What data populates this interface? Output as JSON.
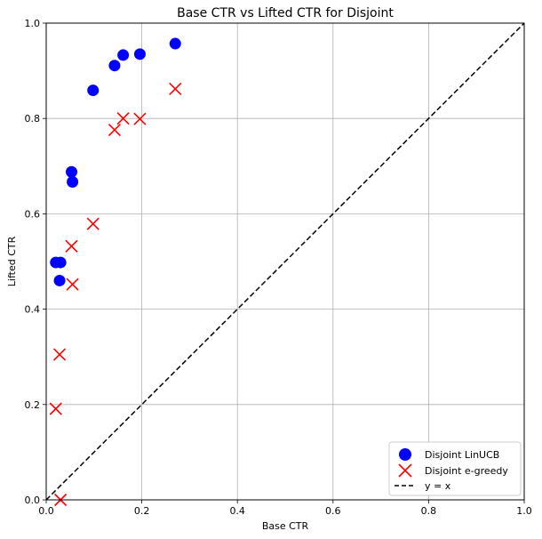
{
  "chart_data": {
    "type": "scatter",
    "title": "Base CTR vs Lifted CTR for Disjoint",
    "xlabel": "Base CTR",
    "ylabel": "Lifted CTR",
    "xlim": [
      0,
      1
    ],
    "ylim": [
      0,
      1
    ],
    "xticks": [
      "0.0",
      "0.2",
      "0.4",
      "0.6",
      "0.8",
      "1.0"
    ],
    "yticks": [
      "0.0",
      "0.2",
      "0.4",
      "0.6",
      "0.8",
      "1.0"
    ],
    "grid": true,
    "legend_position": "bottom-right",
    "series": [
      {
        "name": "Disjoint LinUCB",
        "marker": "circle",
        "color": "#0000ff",
        "points": [
          {
            "x": 0.02,
            "y": 0.498
          },
          {
            "x": 0.03,
            "y": 0.498
          },
          {
            "x": 0.028,
            "y": 0.46
          },
          {
            "x": 0.053,
            "y": 0.688
          },
          {
            "x": 0.055,
            "y": 0.667
          },
          {
            "x": 0.098,
            "y": 0.859
          },
          {
            "x": 0.143,
            "y": 0.911
          },
          {
            "x": 0.161,
            "y": 0.933
          },
          {
            "x": 0.196,
            "y": 0.935
          },
          {
            "x": 0.27,
            "y": 0.957
          }
        ]
      },
      {
        "name": "Disjoint e-greedy",
        "marker": "x",
        "color": "#ff0000",
        "points": [
          {
            "x": 0.02,
            "y": 0.191
          },
          {
            "x": 0.028,
            "y": 0.305
          },
          {
            "x": 0.03,
            "y": 0.0
          },
          {
            "x": 0.053,
            "y": 0.532
          },
          {
            "x": 0.055,
            "y": 0.452
          },
          {
            "x": 0.098,
            "y": 0.579
          },
          {
            "x": 0.143,
            "y": 0.776
          },
          {
            "x": 0.161,
            "y": 0.8
          },
          {
            "x": 0.196,
            "y": 0.799
          },
          {
            "x": 0.27,
            "y": 0.862
          }
        ]
      }
    ],
    "reference_line": {
      "name": "y = x",
      "color": "#000000",
      "style": "dashed",
      "from": [
        0,
        0
      ],
      "to": [
        1,
        1
      ]
    }
  }
}
